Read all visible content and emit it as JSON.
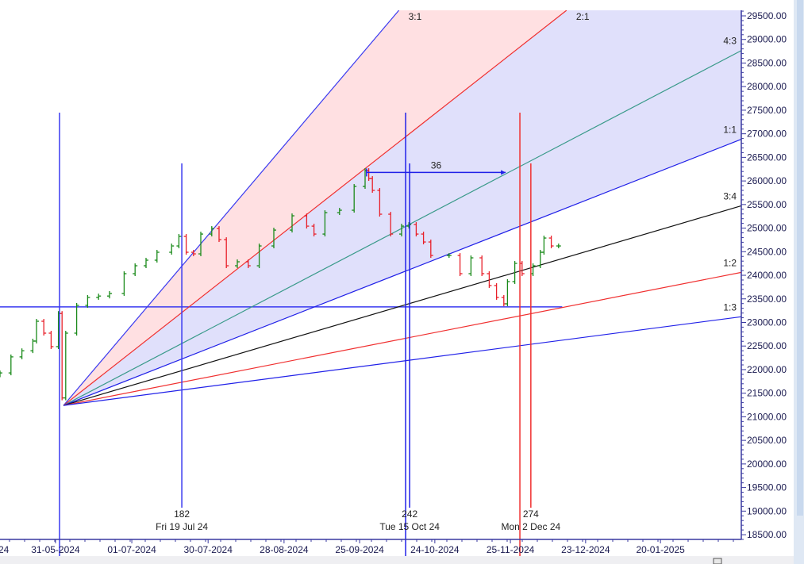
{
  "chart_data": {
    "type": "ohlc-bar",
    "title": "",
    "colors": {
      "up": "#1a8a1a",
      "down": "#e8202a",
      "axis": "#3a3aa0",
      "fan_shade_upper": "#ffe0e2",
      "fan_shade_lower": "#e0e0fb"
    },
    "y_axis": {
      "min": 18500,
      "max": 29500,
      "step": 500,
      "tick_labels": [
        "29500.00",
        "29000.00",
        "28500.00",
        "28000.00",
        "27500.00",
        "27000.00",
        "26500.00",
        "26000.00",
        "25500.00",
        "25000.00",
        "24500.00",
        "24000.00",
        "23500.00",
        "23000.00",
        "22500.00",
        "22000.00",
        "21500.00",
        "21000.00",
        "20500.00",
        "20000.00",
        "19500.00",
        "19000.00",
        "18500.00"
      ]
    },
    "x_axis": {
      "unit": "bar index",
      "range": [
        0,
        203
      ],
      "tick_labels": [
        {
          "bar": -5,
          "label": "24"
        },
        {
          "bar": 15.2,
          "label": "31-05-2024"
        },
        {
          "bar": 36.1,
          "label": "01-07-2024"
        },
        {
          "bar": 57,
          "label": "30-07-2024"
        },
        {
          "bar": 77.8,
          "label": "28-08-2024"
        },
        {
          "bar": 98.5,
          "label": "25-09-2024"
        },
        {
          "bar": 119.1,
          "label": "24-10-2024"
        },
        {
          "bar": 139.8,
          "label": "25-11-2024"
        },
        {
          "bar": 160.4,
          "label": "23-12-2024"
        },
        {
          "bar": 180.9,
          "label": "20-01-2025"
        }
      ]
    },
    "closes": [
      [
        0,
        21930
      ],
      [
        3,
        22270
      ],
      [
        6,
        22400
      ],
      [
        9,
        22605
      ],
      [
        10,
        23025
      ],
      [
        12,
        22773
      ],
      [
        14,
        22487
      ],
      [
        16,
        23190
      ],
      [
        17,
        21400
      ],
      [
        18,
        22773
      ],
      [
        21,
        23362
      ],
      [
        24,
        23530
      ],
      [
        27,
        23560
      ],
      [
        30,
        23614
      ],
      [
        34,
        24034
      ],
      [
        37,
        24202
      ],
      [
        40,
        24320
      ],
      [
        43,
        24488
      ],
      [
        47,
        24622
      ],
      [
        49,
        24824
      ],
      [
        51,
        24488
      ],
      [
        53,
        24454
      ],
      [
        55,
        24874
      ],
      [
        58,
        24992
      ],
      [
        60,
        24756
      ],
      [
        62,
        24202
      ],
      [
        65,
        24286
      ],
      [
        68,
        24202
      ],
      [
        71,
        24622
      ],
      [
        75,
        24958
      ],
      [
        80,
        25261
      ],
      [
        84,
        25042
      ],
      [
        86,
        24874
      ],
      [
        89,
        25328
      ],
      [
        93,
        25379
      ],
      [
        97,
        25884
      ],
      [
        100,
        26220
      ],
      [
        101,
        26052
      ],
      [
        102,
        25800
      ],
      [
        104,
        25295
      ],
      [
        107,
        24874
      ],
      [
        110,
        25042
      ],
      [
        112,
        25076
      ],
      [
        114,
        24874
      ],
      [
        116,
        24706
      ],
      [
        118,
        24420
      ],
      [
        123,
        24420
      ],
      [
        126,
        24034
      ],
      [
        129,
        24370
      ],
      [
        132,
        24034
      ],
      [
        134,
        23782
      ],
      [
        136,
        23530
      ],
      [
        138,
        23395
      ],
      [
        139,
        23866
      ],
      [
        141,
        24252
      ],
      [
        143,
        24034
      ],
      [
        146,
        24202
      ],
      [
        148,
        24488
      ],
      [
        149,
        24790
      ],
      [
        151,
        24622
      ],
      [
        153,
        24622
      ]
    ],
    "gann_fan": {
      "origin": {
        "bar": 17.4,
        "price": 21240
      },
      "unit_slope_points_per_bar": 30.4,
      "lines": [
        {
          "label": "3:1",
          "ratio": 3,
          "color": "#3a3af0"
        },
        {
          "label": "2:1",
          "ratio": 2,
          "color": "#f03030"
        },
        {
          "label": "4:3",
          "ratio": 1.3333,
          "color": "#3a9a8a"
        },
        {
          "label": "1:1",
          "ratio": 1,
          "color": "#2020e8"
        },
        {
          "label": "3:4",
          "ratio": 0.75,
          "color": "#111111"
        },
        {
          "label": "1:2",
          "ratio": 0.5,
          "color": "#f03030"
        },
        {
          "label": "1:3",
          "ratio": 0.3333,
          "color": "#2020e8"
        }
      ]
    },
    "horizontal_line": {
      "price": 23330,
      "bar_end": 154,
      "color": "#3a3af0"
    },
    "cycle_markers": [
      {
        "bar": 16.3,
        "color": "#3a3af0",
        "count": "",
        "date": "",
        "full": true
      },
      {
        "bar": 49.8,
        "color": "#3a3af0",
        "count": "182",
        "date": "Fri 19 Jul 24",
        "full": false
      },
      {
        "bar": 111.1,
        "color": "#2020e8",
        "count": "",
        "date": "",
        "full": true
      },
      {
        "bar": 112.2,
        "color": "#2020e8",
        "count": "242",
        "date": "Tue 15 Oct 24",
        "full": false
      },
      {
        "bar": 142.4,
        "color": "#f03030",
        "count": "",
        "date": "",
        "full": true
      },
      {
        "bar": 145.4,
        "color": "#f03030",
        "count": "274",
        "date": "Mon 2 Dec 24",
        "full": false
      }
    ],
    "measure_arrow": {
      "label": "36",
      "from_bar": 100.4,
      "to_bar": 138.5,
      "price": 26180
    }
  }
}
